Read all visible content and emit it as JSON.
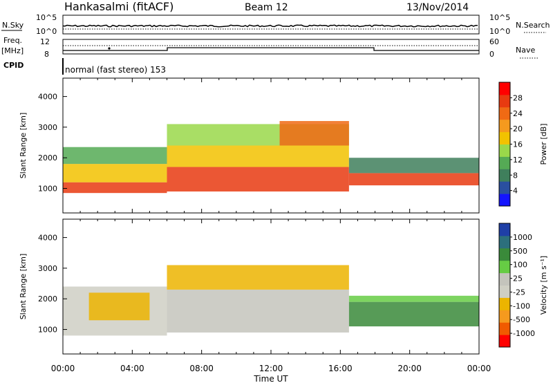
{
  "header": {
    "station": "Hankasalmi (fitACF)",
    "beam": "Beam 12",
    "date": "13/Nov/2014"
  },
  "top_panels": {
    "nsky_label": "N.Sky",
    "nsky_ticks": [
      "10^5",
      "10^0"
    ],
    "nsearch_label": "N.Search",
    "nsearch_ticks": [
      "10^5",
      "10^0"
    ],
    "freq_label_1": "Freq.",
    "freq_label_2": "[MHz]",
    "freq_ticks": [
      "12",
      "8"
    ],
    "nave_label": "Nave",
    "nave_ticks": [
      "60",
      "0"
    ],
    "cpid_label": "CPID",
    "cpid_text": "normal (fast stereo) 153"
  },
  "colors": {
    "power_scale": [
      "#1414ff",
      "#2a4fa0",
      "#3f7f5c",
      "#55aa55",
      "#9ad84a",
      "#f2c200",
      "#f59a1e",
      "#f06a14",
      "#e83a10",
      "#ff0000"
    ],
    "velocity_scale": [
      "#ff0000",
      "#f05a00",
      "#f59a1e",
      "#ecb400",
      "#cfcfc4",
      "#c4c4bc",
      "#66cc44",
      "#3a8a3a",
      "#2c6f7c",
      "#1f3fa6"
    ]
  },
  "chart_data": [
    {
      "type": "heatmap",
      "panel": "power",
      "ylabel": "Slant Range [km]",
      "y_ticks": [
        "1000",
        "2000",
        "3000",
        "4000"
      ],
      "ylim": [
        200,
        4600
      ],
      "x_ticks": [
        "00:00",
        "04:00",
        "08:00",
        "12:00",
        "16:00",
        "20:00",
        "00:00"
      ],
      "colorbar_label": "Power [dB]",
      "colorbar_ticks": [
        "4",
        "8",
        "12",
        "16",
        "20",
        "24",
        "28"
      ],
      "colorbar_range": [
        0,
        32
      ],
      "bands": [
        {
          "t0": 0.0,
          "t1": 6.0,
          "r0": 850,
          "r1": 1200,
          "level": 27
        },
        {
          "t0": 0.0,
          "t1": 6.0,
          "r0": 1200,
          "r1": 1800,
          "level": 18
        },
        {
          "t0": 0.0,
          "t1": 6.0,
          "r0": 1800,
          "r1": 2350,
          "level": 11
        },
        {
          "t0": 6.0,
          "t1": 16.5,
          "r0": 900,
          "r1": 1700,
          "level": 27
        },
        {
          "t0": 6.0,
          "t1": 16.5,
          "r0": 1700,
          "r1": 2400,
          "level": 16
        },
        {
          "t0": 6.0,
          "t1": 16.5,
          "r0": 2400,
          "r1": 3100,
          "level": 13
        },
        {
          "t0": 12.5,
          "t1": 16.5,
          "r0": 2400,
          "r1": 3200,
          "level": 24
        },
        {
          "t0": 16.5,
          "t1": 24.0,
          "r0": 1100,
          "r1": 1500,
          "level": 26
        },
        {
          "t0": 16.5,
          "t1": 24.0,
          "r0": 1500,
          "r1": 2000,
          "level": 8
        }
      ]
    },
    {
      "type": "heatmap",
      "panel": "velocity",
      "ylabel": "Slant Range [km]",
      "y_ticks": [
        "1000",
        "2000",
        "3000",
        "4000"
      ],
      "ylim": [
        200,
        4600
      ],
      "x_ticks": [
        "00:00",
        "04:00",
        "08:00",
        "12:00",
        "16:00",
        "20:00",
        "00:00"
      ],
      "xlabel": "Time UT",
      "colorbar_label": "Velocity [m s⁻¹]",
      "colorbar_ticks": [
        "1000",
        "500",
        "100",
        "25",
        "-25",
        "-100",
        "-500",
        "-1000"
      ],
      "bands": [
        {
          "t0": 0.0,
          "t1": 6.0,
          "r0": 800,
          "r1": 2400,
          "level": -25
        },
        {
          "t0": 1.5,
          "t1": 5.0,
          "r0": 1300,
          "r1": 2200,
          "level": -300
        },
        {
          "t0": 6.0,
          "t1": 16.5,
          "r0": 900,
          "r1": 2300,
          "level": 0
        },
        {
          "t0": 6.0,
          "t1": 16.5,
          "r0": 2300,
          "r1": 3100,
          "level": -150
        },
        {
          "t0": 16.5,
          "t1": 24.0,
          "r0": 1100,
          "r1": 1900,
          "level": 300
        },
        {
          "t0": 16.5,
          "t1": 24.0,
          "r0": 1900,
          "r1": 2100,
          "level": 60
        }
      ]
    }
  ]
}
